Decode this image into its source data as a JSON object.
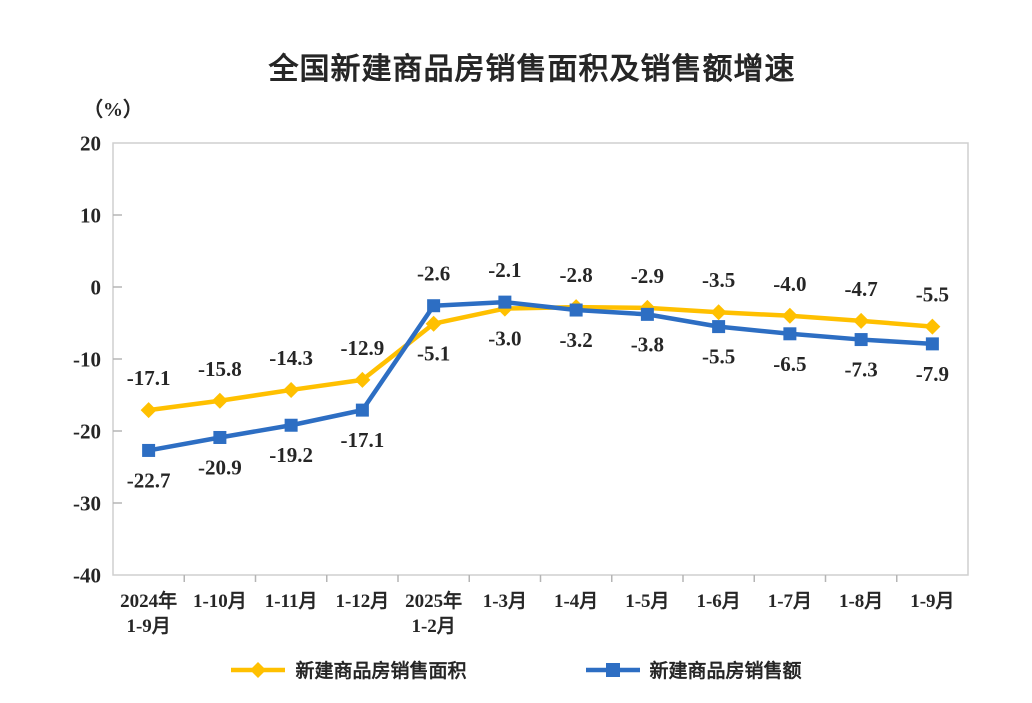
{
  "page": {
    "background": "#ffffff"
  },
  "chart_data": {
    "type": "line",
    "title": "全国新建商品房销售面积及销售额增速",
    "ylabel": "（%）",
    "xlabel": "",
    "ylim": [
      -40,
      20
    ],
    "ytick_step": 10,
    "yticks": [
      20,
      10,
      0,
      -10,
      -20,
      -30,
      -40
    ],
    "grid": false,
    "legend_position": "bottom",
    "label_color": "#262626",
    "axis_color": "#cfcfcf",
    "categories": [
      "2024年\n1-9月",
      "1-10月",
      "1-11月",
      "1-12月",
      "2025年\n1-2月",
      "1-3月",
      "1-4月",
      "1-5月",
      "1-6月",
      "1-7月",
      "1-8月",
      "1-9月"
    ],
    "series": [
      {
        "name": "新建商品房销售面积",
        "color": "#FFC000",
        "marker": "diamond",
        "values": [
          -17.1,
          -15.8,
          -14.3,
          -12.9,
          -5.1,
          -3.0,
          -2.8,
          -2.9,
          -3.5,
          -4.0,
          -4.7,
          -5.5
        ]
      },
      {
        "name": "新建商品房销售额",
        "color": "#2D6EC3",
        "marker": "square",
        "values": [
          -22.7,
          -20.9,
          -19.2,
          -17.1,
          -2.6,
          -2.1,
          -3.2,
          -3.8,
          -5.5,
          -6.5,
          -7.3,
          -7.9
        ]
      }
    ]
  }
}
